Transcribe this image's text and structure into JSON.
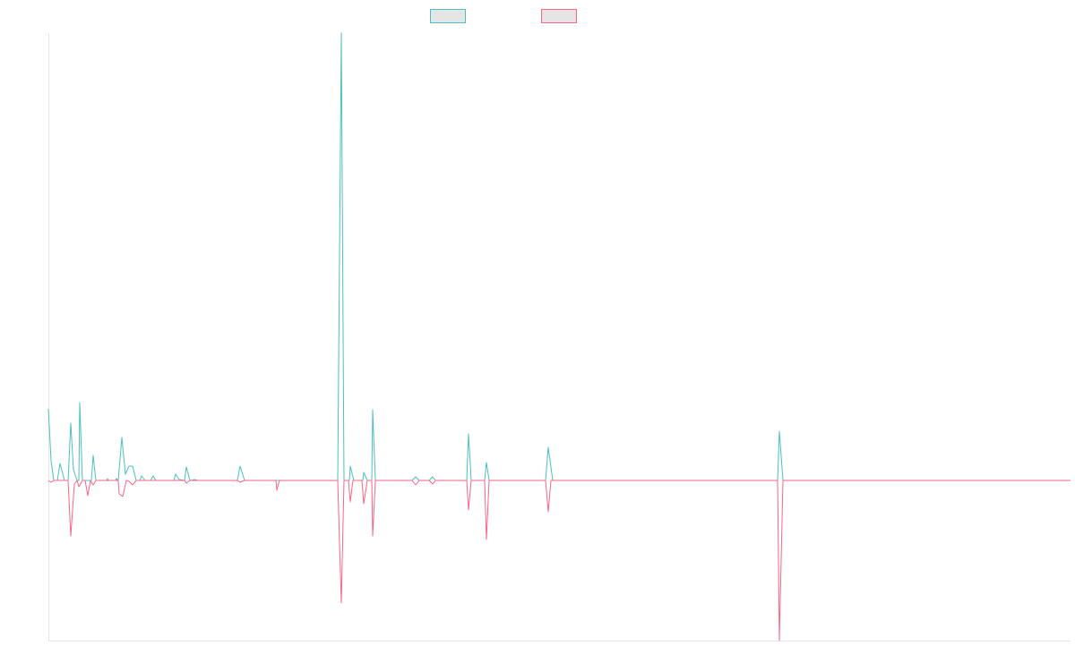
{
  "chart_data": {
    "type": "line",
    "title": "",
    "xlabel": "",
    "ylabel": "",
    "xlim": [
      0,
      456.4
    ],
    "ylim": [
      -35.8,
      100
    ],
    "grid": false,
    "legend": "top-center",
    "series": [
      {
        "name": "",
        "color": "#4bc0c0",
        "points": [
          [
            0,
            16
          ],
          [
            1.2,
            4.4
          ],
          [
            2.4,
            0
          ],
          [
            4,
            0
          ],
          [
            5.2,
            3.8
          ],
          [
            7.2,
            0
          ],
          [
            8.8,
            0
          ],
          [
            10,
            12.8
          ],
          [
            11.2,
            2.4
          ],
          [
            12.8,
            0
          ],
          [
            13.6,
            0
          ],
          [
            14,
            17.4
          ],
          [
            15.2,
            0
          ],
          [
            19.2,
            0
          ],
          [
            20,
            5.6
          ],
          [
            21.2,
            0
          ],
          [
            26,
            0
          ],
          [
            26.4,
            0.4
          ],
          [
            26.8,
            0
          ],
          [
            30,
            0
          ],
          [
            30.4,
            0.4
          ],
          [
            31.2,
            0
          ],
          [
            32.8,
            9.6
          ],
          [
            34.4,
            1.4
          ],
          [
            36,
            3.2
          ],
          [
            37.6,
            3.2
          ],
          [
            39.2,
            0
          ],
          [
            40.8,
            0
          ],
          [
            41.6,
            1
          ],
          [
            43.2,
            0
          ],
          [
            45.6,
            0
          ],
          [
            46.8,
            1
          ],
          [
            48,
            0
          ],
          [
            56,
            0
          ],
          [
            56.8,
            1.4
          ],
          [
            58.4,
            0.2
          ],
          [
            60.8,
            0
          ],
          [
            61.6,
            3
          ],
          [
            63.2,
            0
          ],
          [
            65.6,
            0.2
          ],
          [
            66.4,
            0
          ],
          [
            84.4,
            0
          ],
          [
            85.6,
            3.2
          ],
          [
            87.6,
            0
          ],
          [
            129.2,
            0
          ],
          [
            130.8,
            100
          ],
          [
            132,
            0
          ],
          [
            134.4,
            0
          ],
          [
            134.8,
            3.2
          ],
          [
            136.4,
            0
          ],
          [
            140.4,
            0
          ],
          [
            140.8,
            1.8
          ],
          [
            142.4,
            0
          ],
          [
            144.4,
            0
          ],
          [
            144.8,
            15.8
          ],
          [
            146,
            0
          ],
          [
            162.4,
            0
          ],
          [
            164,
            0.8
          ],
          [
            165.6,
            0
          ],
          [
            170,
            0
          ],
          [
            171.6,
            0.8
          ],
          [
            172.8,
            0
          ],
          [
            186.8,
            0
          ],
          [
            187.6,
            10.4
          ],
          [
            188.8,
            0
          ],
          [
            194.8,
            0
          ],
          [
            195.6,
            4
          ],
          [
            196.8,
            0
          ],
          [
            222,
            0
          ],
          [
            223.2,
            7.4
          ],
          [
            225.2,
            0
          ],
          [
            325.6,
            0
          ],
          [
            326.4,
            11
          ],
          [
            328,
            0
          ],
          [
            456.4,
            0
          ]
        ]
      },
      {
        "name": "",
        "color": "#ff6384",
        "points": [
          [
            0,
            0
          ],
          [
            1.2,
            -0.4
          ],
          [
            2.4,
            0
          ],
          [
            8.8,
            0
          ],
          [
            10,
            -12.4
          ],
          [
            11.6,
            -0.8
          ],
          [
            12.8,
            0
          ],
          [
            13.6,
            -1.4
          ],
          [
            15.2,
            0
          ],
          [
            16.4,
            0
          ],
          [
            17.6,
            -3.4
          ],
          [
            18.8,
            0
          ],
          [
            20,
            -1
          ],
          [
            21.2,
            0
          ],
          [
            31.2,
            0
          ],
          [
            31.6,
            -3
          ],
          [
            33.2,
            -3.6
          ],
          [
            34.8,
            0
          ],
          [
            36,
            -0.2
          ],
          [
            37.6,
            -1
          ],
          [
            39.2,
            0
          ],
          [
            60.8,
            0
          ],
          [
            61.6,
            -0.6
          ],
          [
            63.2,
            0
          ],
          [
            84.4,
            0
          ],
          [
            85.6,
            -0.4
          ],
          [
            87.6,
            0
          ],
          [
            101.6,
            0
          ],
          [
            102,
            -2.2
          ],
          [
            103.2,
            0
          ],
          [
            129.2,
            0
          ],
          [
            130.8,
            -27.4
          ],
          [
            132,
            0
          ],
          [
            134,
            0
          ],
          [
            134.8,
            -4.8
          ],
          [
            136,
            0
          ],
          [
            140,
            0
          ],
          [
            140.8,
            -5.2
          ],
          [
            142.4,
            0
          ],
          [
            144.4,
            0
          ],
          [
            144.8,
            -12.4
          ],
          [
            146,
            0
          ],
          [
            162.4,
            0
          ],
          [
            164,
            -1
          ],
          [
            165.6,
            0
          ],
          [
            170,
            0
          ],
          [
            171.6,
            -0.8
          ],
          [
            172.8,
            0
          ],
          [
            186.8,
            0
          ],
          [
            187.6,
            -6.6
          ],
          [
            188.8,
            0
          ],
          [
            194.8,
            0
          ],
          [
            195.6,
            -13.2
          ],
          [
            196.8,
            0
          ],
          [
            222,
            0
          ],
          [
            223.2,
            -7
          ],
          [
            224.4,
            0
          ],
          [
            325.6,
            0
          ],
          [
            326.4,
            -35.8
          ],
          [
            328,
            0
          ],
          [
            456.4,
            0
          ]
        ]
      }
    ]
  }
}
